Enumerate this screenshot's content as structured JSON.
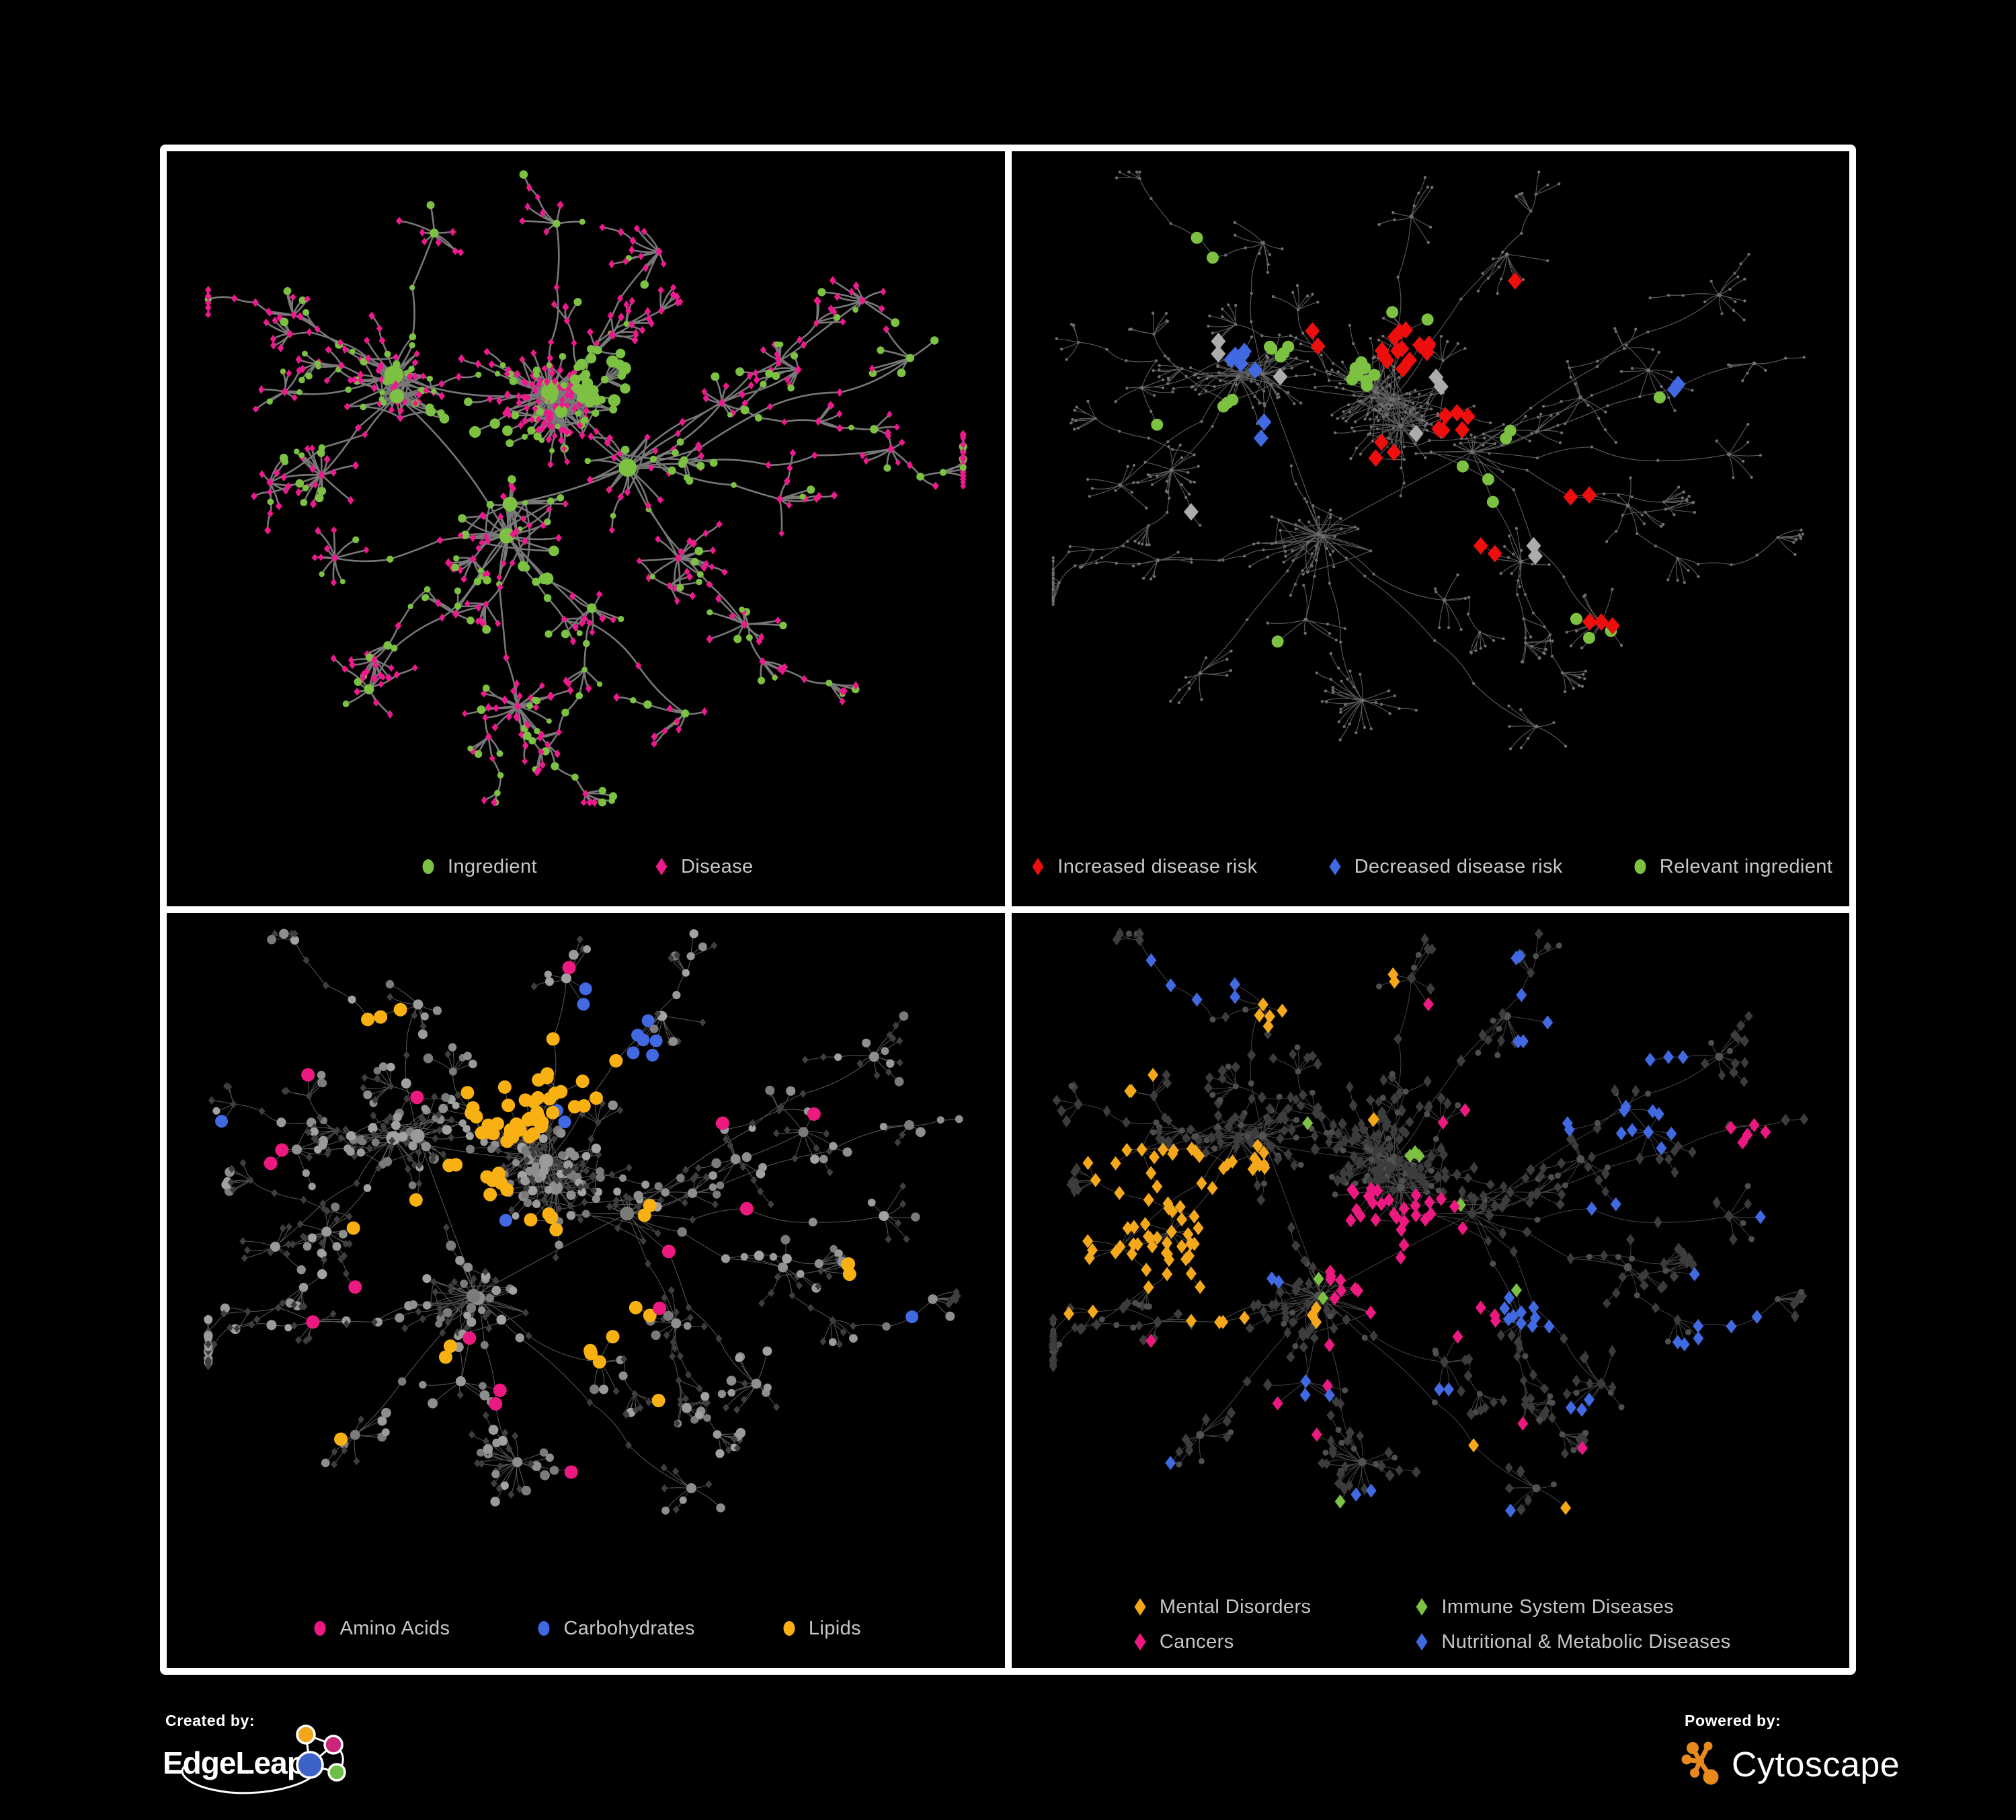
{
  "page": {
    "background": "#000000",
    "frame_color": "#ffffff",
    "legend_text_color": "#C7C7C7"
  },
  "panels": [
    {
      "id": "ingredient-disease-network",
      "legend": [
        {
          "label": "Ingredient",
          "shape": "circle",
          "color": "#7CC142"
        },
        {
          "label": "Disease",
          "shape": "diamond",
          "color": "#EC1A8D"
        }
      ]
    },
    {
      "id": "disease-risk-network",
      "legend": [
        {
          "label": "Increased disease risk",
          "shape": "diamond",
          "color": "#EE0E0E"
        },
        {
          "label": "Decreased disease risk",
          "shape": "diamond",
          "color": "#4169E1"
        },
        {
          "label": "Relevant ingredient",
          "shape": "circle",
          "color": "#7CC142"
        }
      ]
    },
    {
      "id": "ingredient-classes-network",
      "legend": [
        {
          "label": "Amino Acids",
          "shape": "circle",
          "color": "#EC1A80"
        },
        {
          "label": "Carbohydrates",
          "shape": "circle",
          "color": "#4169E1"
        },
        {
          "label": "Lipids",
          "shape": "circle",
          "color": "#F9B013"
        }
      ]
    },
    {
      "id": "disease-classes-network",
      "legend": [
        {
          "label": "Mental Disorders",
          "shape": "diamond",
          "color": "#F5A81C"
        },
        {
          "label": "Immune System Diseases",
          "shape": "diamond",
          "color": "#7CC142"
        },
        {
          "label": "Cancers",
          "shape": "diamond",
          "color": "#EC1A80"
        },
        {
          "label": "Nutritional & Metabolic Diseases",
          "shape": "diamond",
          "color": "#4169E1"
        }
      ]
    }
  ],
  "network_styles": {
    "neutral_node_gray": "#9A9A9A",
    "tiny_node_gray": "#6E6E6E",
    "dark_diamond_gray": "#3C3C3C",
    "neutral_diamond_gray": "#ACACAC",
    "edge_grays": [
      "#7E7E7E",
      "#636363",
      "#A3A3A3",
      "#909090"
    ]
  },
  "footer": {
    "created_by": {
      "label": "Created by:",
      "brand": "EdgeLeap",
      "logo_colors": {
        "orange": "#F2A71B",
        "magenta": "#C92579",
        "blue": "#3D63C9",
        "green": "#6CBE45"
      }
    },
    "powered_by": {
      "label": "Powered by:",
      "brand": "Cytoscape",
      "logo_colors": {
        "orange": "#E8891D"
      }
    }
  }
}
